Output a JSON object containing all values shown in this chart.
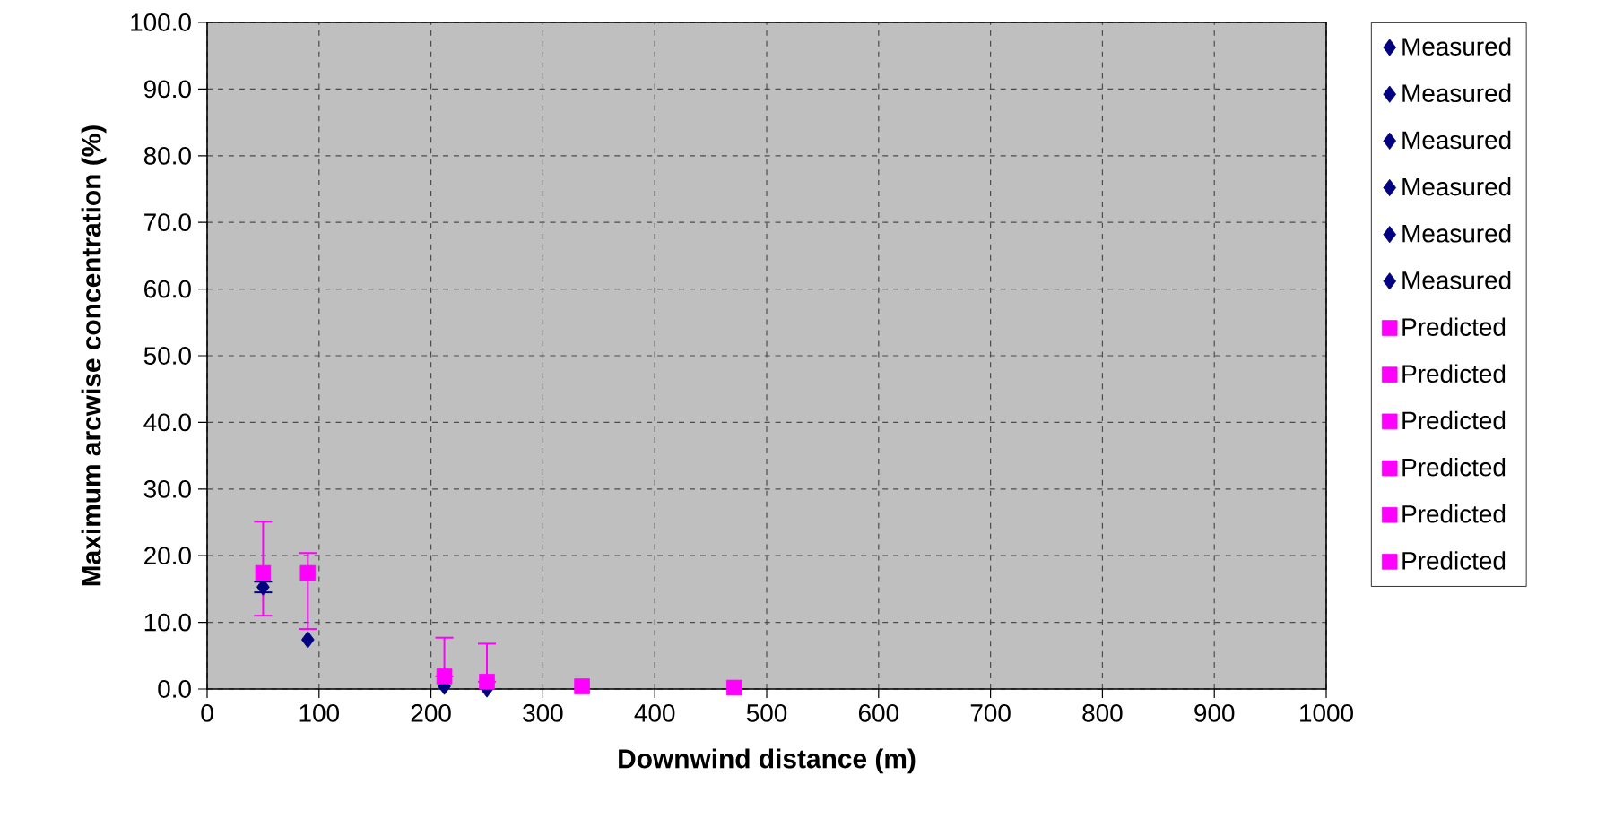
{
  "chart_data": {
    "type": "scatter",
    "xlabel": "Downwind distance (m)",
    "ylabel": "Maximum arcwise concentration (%)",
    "xlim": [
      0,
      1000
    ],
    "xticks": [
      0,
      100,
      200,
      300,
      400,
      500,
      600,
      700,
      800,
      900,
      1000
    ],
    "ylim": [
      0,
      100
    ],
    "yticks": [
      {
        "value": 0,
        "label": "0.0"
      },
      {
        "value": 10,
        "label": "10.0"
      },
      {
        "value": 20,
        "label": "20.0"
      },
      {
        "value": 30,
        "label": "30.0"
      },
      {
        "value": 40,
        "label": "40.0"
      },
      {
        "value": 50,
        "label": "50.0"
      },
      {
        "value": 60,
        "label": "60.0"
      },
      {
        "value": 70,
        "label": "70.0"
      },
      {
        "value": 80,
        "label": "80.0"
      },
      {
        "value": 90,
        "label": "90.0"
      },
      {
        "value": 100,
        "label": "100.0"
      }
    ],
    "grid": true,
    "legend": "right",
    "series": [
      {
        "name": "Measured",
        "color": "#000080",
        "marker": "diamond",
        "x": [
          50
        ],
        "values": [
          15.3
        ],
        "errors": [
          [
            14.5,
            16.1
          ]
        ]
      },
      {
        "name": "Measured",
        "color": "#000080",
        "marker": "diamond",
        "x": [
          90
        ],
        "values": [
          7.4
        ]
      },
      {
        "name": "Measured",
        "color": "#000080",
        "marker": "diamond",
        "x": [
          212
        ],
        "values": [
          0.4
        ]
      },
      {
        "name": "Measured",
        "color": "#000080",
        "marker": "diamond",
        "x": [
          250
        ],
        "values": [
          0.0
        ]
      },
      {
        "name": "Measured",
        "color": "#000080",
        "marker": "diamond",
        "values": [
          null
        ]
      },
      {
        "name": "Measured",
        "color": "#000080",
        "marker": "diamond",
        "values": [
          null
        ]
      },
      {
        "name": "Predicted",
        "color": "#ff00ff",
        "marker": "square",
        "x": [
          50
        ],
        "values": [
          17.4
        ],
        "errors": [
          [
            11.0,
            25.1
          ]
        ]
      },
      {
        "name": "Predicted",
        "color": "#ff00ff",
        "marker": "square",
        "x": [
          90
        ],
        "values": [
          17.4
        ],
        "errors": [
          [
            9.0,
            20.4
          ]
        ]
      },
      {
        "name": "Predicted",
        "color": "#ff00ff",
        "marker": "square",
        "x": [
          212
        ],
        "values": [
          1.9
        ],
        "errors": [
          [
            1.9,
            7.7
          ]
        ]
      },
      {
        "name": "Predicted",
        "color": "#ff00ff",
        "marker": "square",
        "x": [
          250
        ],
        "values": [
          1.1
        ],
        "errors": [
          [
            1.1,
            6.8
          ]
        ]
      },
      {
        "name": "Predicted",
        "color": "#ff00ff",
        "marker": "square",
        "x": [
          335
        ],
        "values": [
          0.4
        ]
      },
      {
        "name": "Predicted",
        "color": "#ff00ff",
        "marker": "square",
        "x": [
          471
        ],
        "values": [
          0.2
        ]
      }
    ]
  }
}
